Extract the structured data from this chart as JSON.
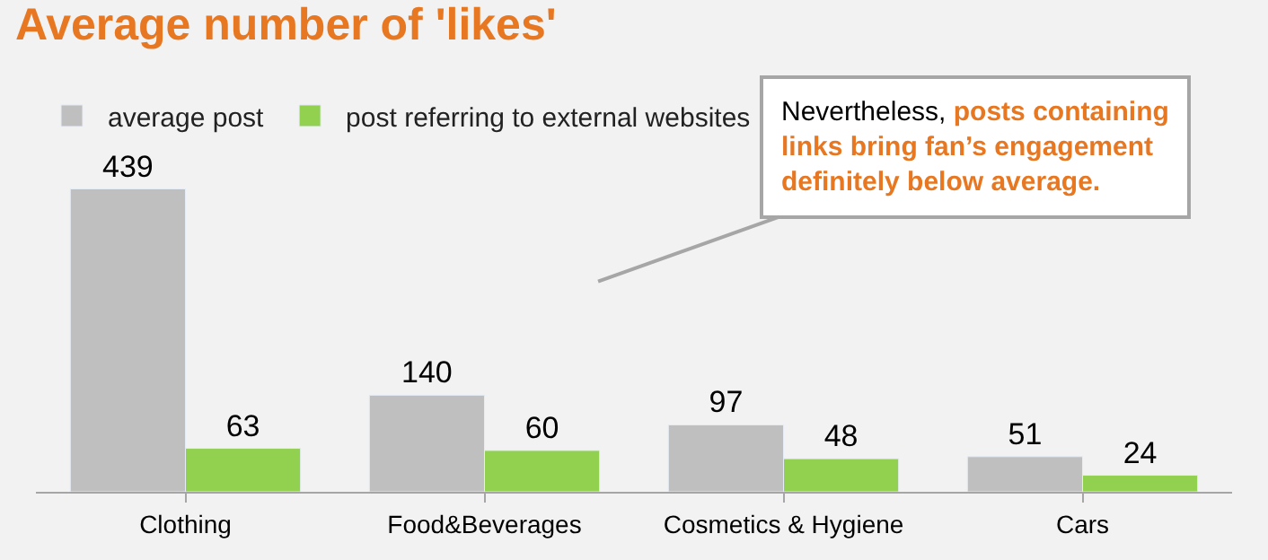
{
  "chart_data": {
    "type": "bar",
    "title": "Average number of 'likes'",
    "categories": [
      "Clothing",
      "Food&Beverages",
      "Cosmetics & Hygiene",
      "Cars"
    ],
    "series": [
      {
        "name": "average post",
        "color": "#bfbfbf",
        "values": [
          439,
          140,
          97,
          51
        ]
      },
      {
        "name": "post referring to external websites",
        "color": "#92d050",
        "values": [
          63,
          60,
          48,
          24
        ]
      }
    ],
    "data_labels": true,
    "legend": "top left",
    "grid": false,
    "annotations": [
      "Nevertheless,",
      "posts containing links bring fan’s engagement definitely below average."
    ]
  }
}
